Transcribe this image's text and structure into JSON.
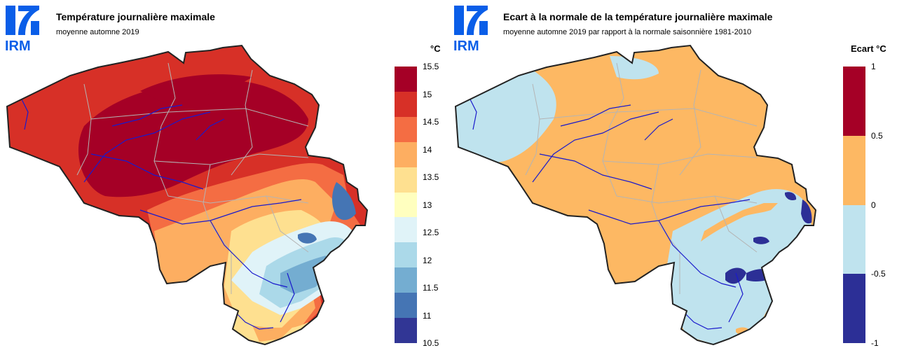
{
  "left_panel": {
    "logo_text": "IRM",
    "title": "Température journalière maximale",
    "subtitle": "moyenne automne 2019",
    "unit": "°C",
    "legend": {
      "labels": [
        "15.5",
        "15",
        "14.5",
        "14",
        "13.5",
        "13",
        "12.5",
        "12",
        "11.5",
        "11",
        "10.5"
      ],
      "colors": [
        "#a50026",
        "#d73027",
        "#f46d43",
        "#fdae61",
        "#fee090",
        "#ffffbf",
        "#e0f3f8",
        "#abd9e9",
        "#74add1",
        "#4575b4",
        "#313695"
      ]
    }
  },
  "right_panel": {
    "logo_text": "IRM",
    "title": "Ecart à la normale de la température journalière maximale",
    "subtitle": "moyenne automne 2019 par rapport à la normale saisonnière 1981-2010",
    "unit": "Ecart  °C",
    "legend": {
      "labels": [
        "1",
        "0.5",
        "0",
        "-0.5",
        "-1"
      ],
      "colors": [
        "#a50026",
        "#fdb863",
        "#bfe3ee",
        "#2c2f96"
      ]
    }
  },
  "colors": {
    "border": "#222222",
    "rivers": "#1a1acc",
    "provinces": "#b4b4b4",
    "logo_blue": "#0a5ee8"
  }
}
